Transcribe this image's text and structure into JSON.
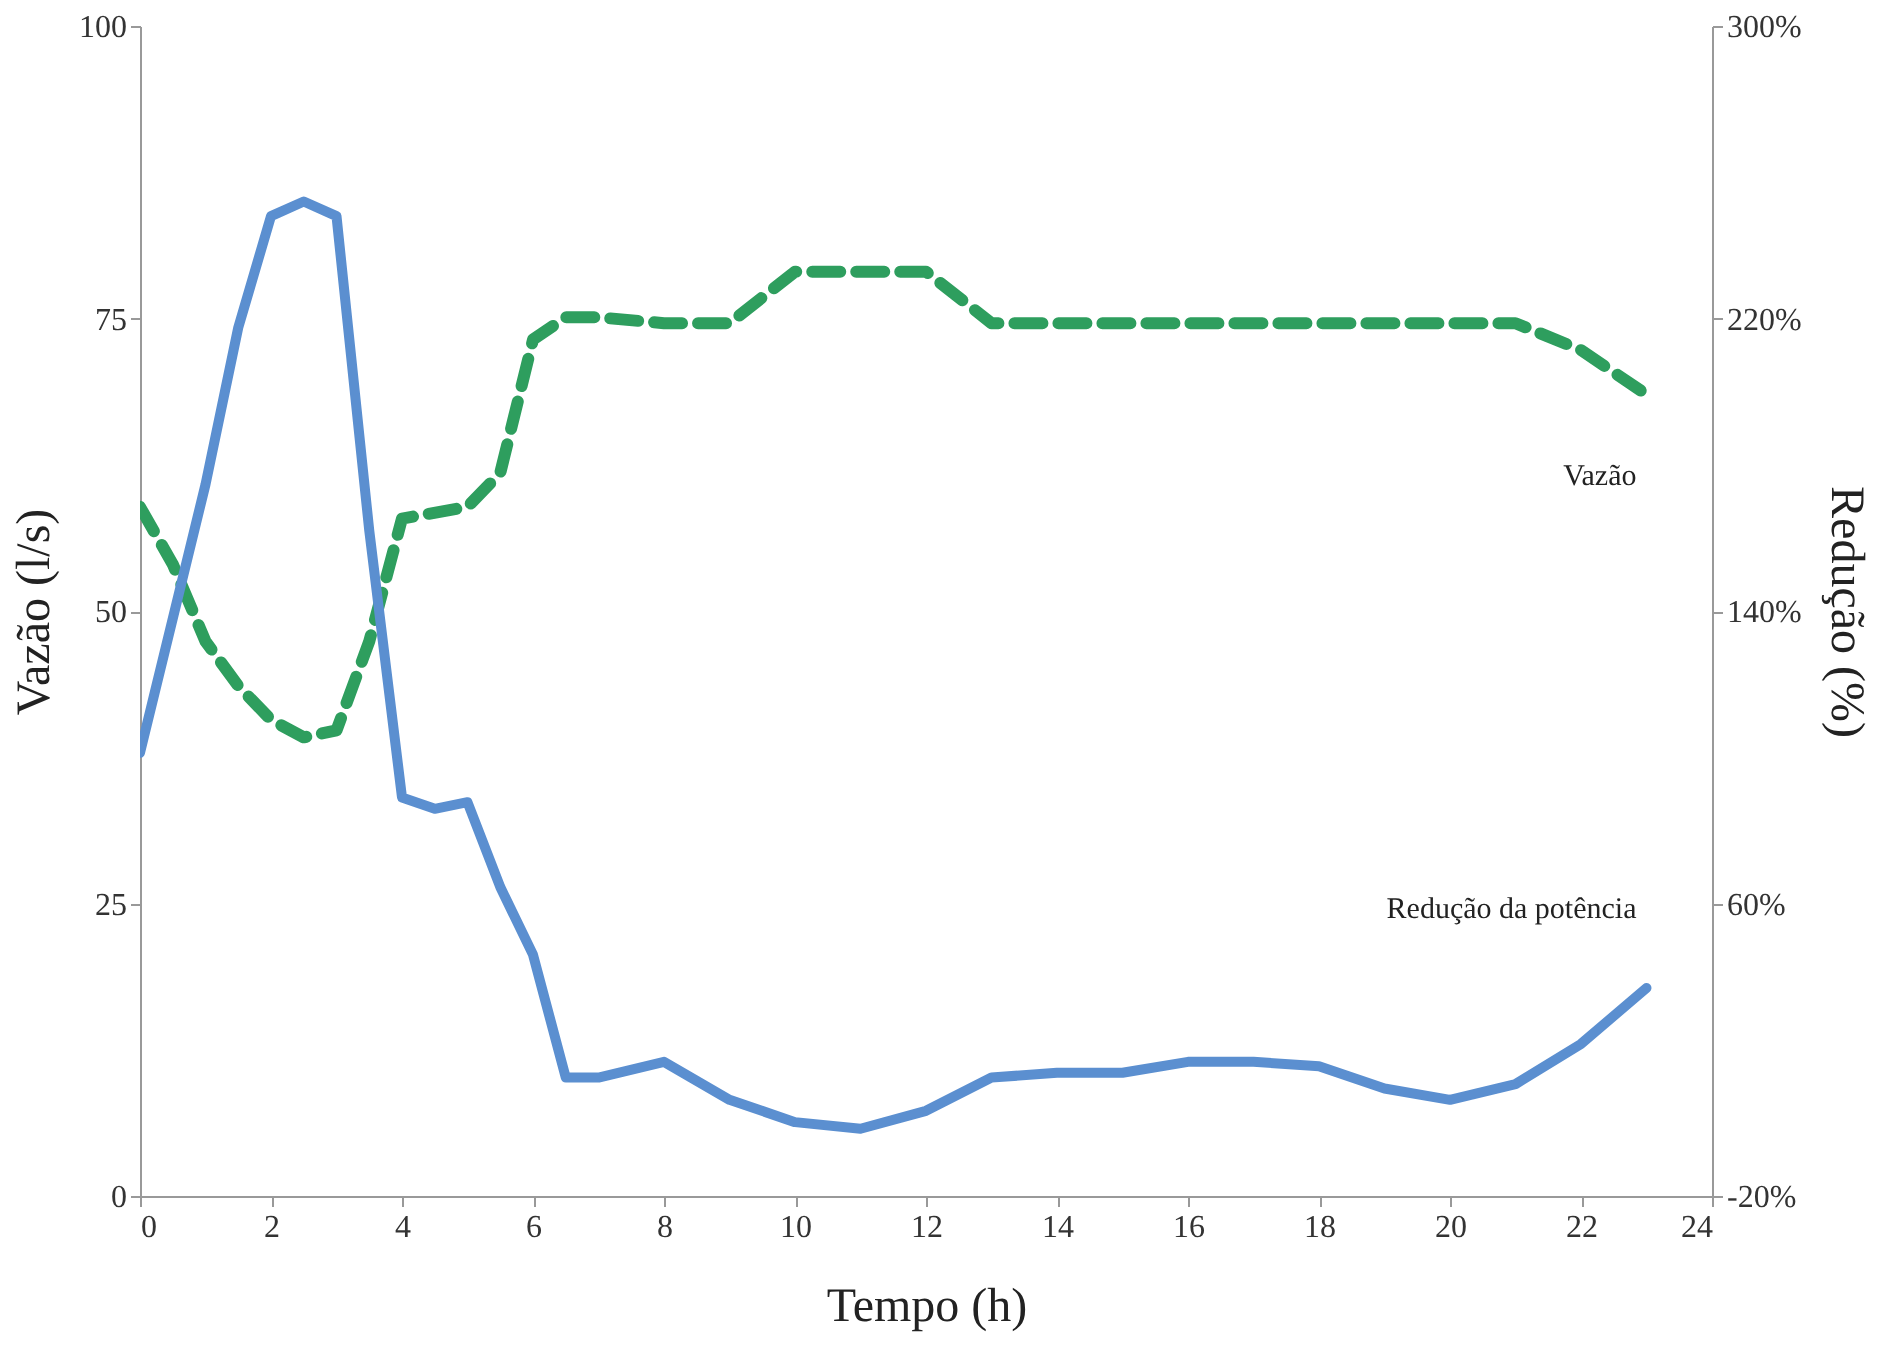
{
  "chart_data": {
    "type": "line",
    "xlabel": "Tempo (h)",
    "ylabel": "Vazão (l/s)",
    "y2label": "Redução (%)",
    "xlim": [
      0,
      24
    ],
    "xticks": [
      0,
      2,
      4,
      6,
      8,
      10,
      12,
      14,
      16,
      18,
      20,
      22,
      24
    ],
    "ylim": [
      0,
      100
    ],
    "yticks": [
      0,
      25,
      50,
      75,
      100
    ],
    "y2lim": [
      -20,
      300
    ],
    "y2ticks": [
      {
        "value": -20,
        "label": "-20%"
      },
      {
        "value": 60,
        "label": "60%"
      },
      {
        "value": 140,
        "label": "140%"
      },
      {
        "value": 220,
        "label": "220%"
      },
      {
        "value": 300,
        "label": "300%"
      }
    ],
    "grid": false,
    "marker": "none",
    "series": [
      {
        "name": "Vazão",
        "color": "#2e9e5e",
        "line_style": "dashed",
        "x": [
          0,
          0.5,
          1,
          1.5,
          2,
          2.5,
          3,
          3.5,
          4,
          5,
          5.5,
          6,
          6.5,
          7,
          8,
          9,
          10,
          11,
          12,
          13,
          14,
          15,
          16,
          17,
          18,
          19,
          20,
          21,
          22,
          23
        ],
        "values": [
          58.9,
          54,
          47.4,
          43.6,
          40.7,
          39.2,
          39.8,
          47.4,
          57.9,
          58.9,
          61.8,
          73.2,
          75.1,
          75.1,
          74.6,
          74.6,
          79,
          79,
          79,
          74.6,
          74.6,
          74.6,
          74.6,
          74.6,
          74.6,
          74.6,
          74.6,
          74.6,
          72.3,
          68.5
        ]
      },
      {
        "name": "Redução da potência",
        "color": "#5b8fd0",
        "line_style": "solid",
        "axis": "y2",
        "x": [
          0,
          1,
          1.5,
          2,
          2.5,
          3,
          3.5,
          4,
          4.5,
          5,
          5.5,
          6,
          6.5,
          7,
          8,
          9,
          10,
          11,
          12,
          13,
          14,
          15,
          16,
          17,
          18,
          19,
          20,
          21,
          22,
          23
        ],
        "values": [
          101.2,
          174.6,
          217.5,
          248,
          252,
          248,
          162,
          89,
          85.9,
          87.7,
          64.5,
          46,
          12.4,
          12.4,
          16.7,
          6.3,
          0.2,
          -1.6,
          3.3,
          12.4,
          13.7,
          13.7,
          16.7,
          16.7,
          15.5,
          9.4,
          6.3,
          10.6,
          21.6,
          36.9
        ]
      }
    ]
  }
}
